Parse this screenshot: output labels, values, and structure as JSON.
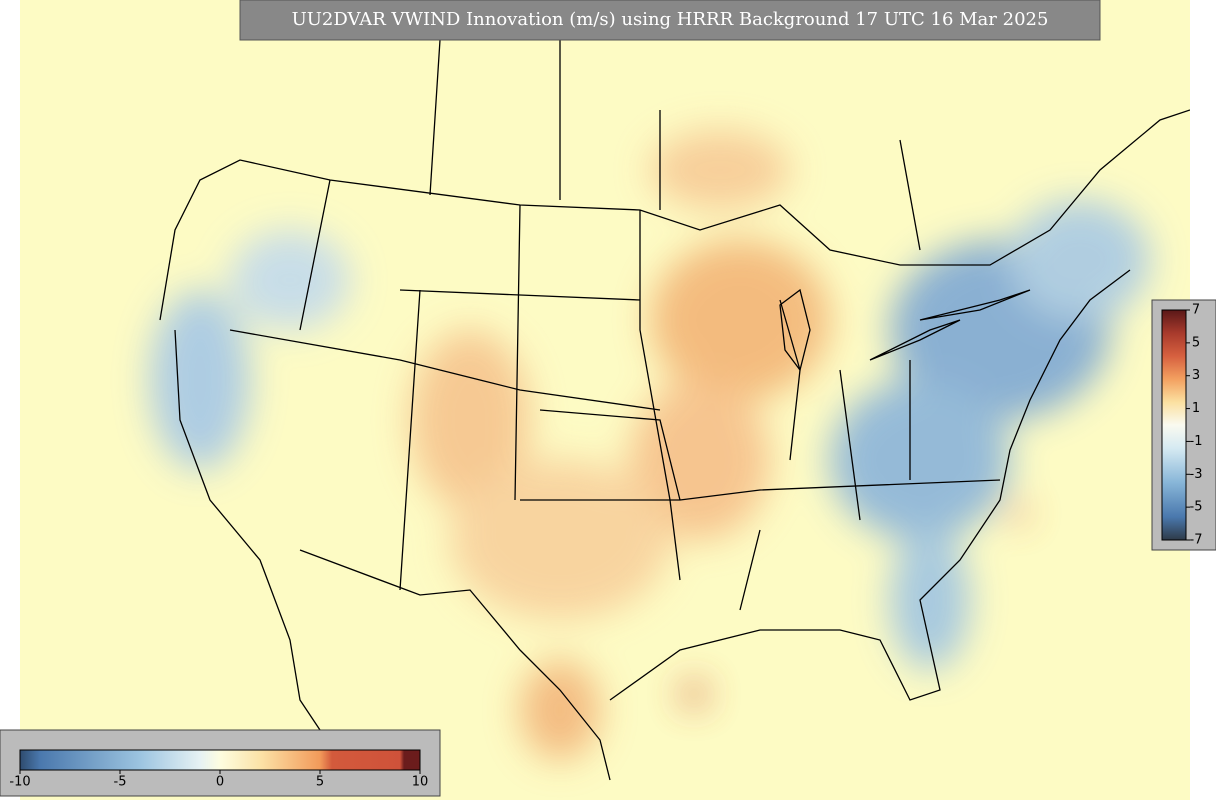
{
  "title": "UU2DVAR VWIND Innovation (m/s) using HRRR Background 17 UTC 16 Mar 2025",
  "colorbar_bottom": {
    "ticks": [
      -10,
      -5,
      0,
      5,
      10
    ],
    "range": [
      -10,
      10
    ]
  },
  "colorbar_right": {
    "ticks": [
      7,
      5,
      3,
      1,
      -1,
      -3,
      -5,
      -7
    ],
    "range": [
      -7,
      7
    ]
  }
}
